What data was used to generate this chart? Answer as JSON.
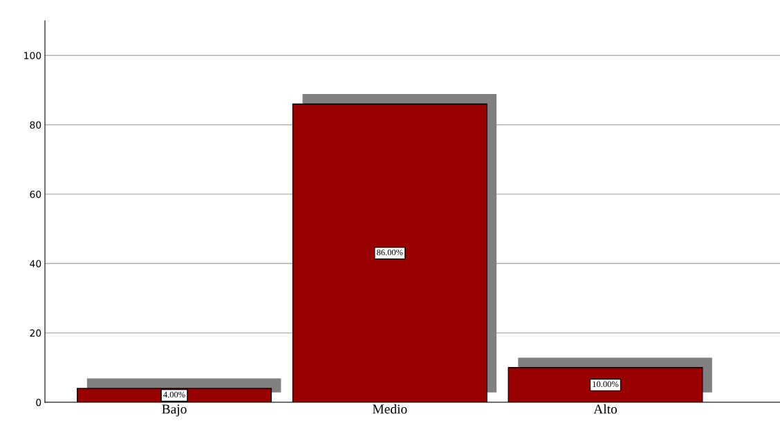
{
  "chart_data": {
    "type": "bar",
    "categories": [
      "Bajo",
      "Medio",
      "Alto"
    ],
    "values": [
      4,
      86,
      10
    ],
    "value_labels": [
      "4.00%",
      "86.00%",
      "10.00%"
    ],
    "color": "#990000",
    "ylim": [
      0,
      110
    ],
    "yticks": [
      0,
      20,
      40,
      60,
      80,
      100
    ],
    "grid": "y"
  }
}
